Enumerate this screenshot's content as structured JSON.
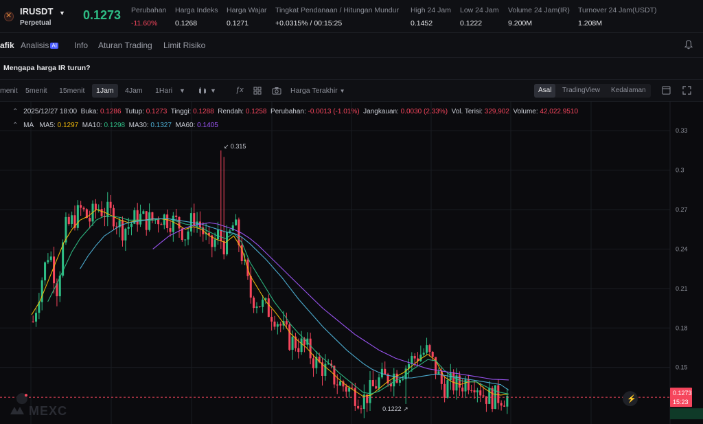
{
  "header": {
    "symbol": "IRUSDT",
    "contract_type": "Perpetual",
    "last_price": "0.1273",
    "stats": [
      {
        "label": "Perubahan",
        "value": "-11.60%",
        "negative": true
      },
      {
        "label": "Harga Indeks",
        "value": "0.1268"
      },
      {
        "label": "Harga Wajar",
        "value": "0.1271"
      },
      {
        "label": "Tingkat Pendanaan / Hitungan Mundur",
        "value": "+0.0315% / 00:15:25"
      },
      {
        "label": "High 24 Jam",
        "value": "0.1452"
      },
      {
        "label": "Low 24 Jam",
        "value": "0.1222"
      },
      {
        "label": "Volume 24 Jam(IR)",
        "value": "9.200M"
      },
      {
        "label": "Turnover 24 Jam(USDT)",
        "value": "1.208M"
      }
    ]
  },
  "tabs": {
    "chart": "afik",
    "analysis": "Analisis",
    "analysis_badge": "AI",
    "info": "Info",
    "rules": "Aturan Trading",
    "risk": "Limit Risiko"
  },
  "question": "Mengapa harga IR turun?",
  "toolbar": {
    "timeframes": [
      "menit",
      "5menit",
      "15menit",
      "1Jam",
      "4Jam",
      "1Hari"
    ],
    "selected_timeframe": "1Jam",
    "price_type": "Harga Terakhir",
    "views": [
      "Asal",
      "TradingView",
      "Kedalaman"
    ],
    "selected_view": "Asal"
  },
  "legend": {
    "ohlc": [
      {
        "label": "",
        "value": "2025/12/27 18:00"
      },
      {
        "label": "Buka:",
        "value": "0.1286"
      },
      {
        "label": "Tutup:",
        "value": "0.1273"
      },
      {
        "label": "Tinggi:",
        "value": "0.1288"
      },
      {
        "label": "Rendah:",
        "value": "0.1258"
      },
      {
        "label": "Perubahan:",
        "value": "-0.0013 (-1.01%)"
      },
      {
        "label": "Jangkauan:",
        "value": "0.0030 (2.33%)"
      },
      {
        "label": "Vol. Terisi:",
        "value": "329,902"
      },
      {
        "label": "Volume:",
        "value": "42,022.9510"
      }
    ],
    "ma_title": "MA",
    "ma": [
      {
        "label": "MA5:",
        "value": "0.1297",
        "color": "#f0b90b"
      },
      {
        "label": "MA10:",
        "value": "0.1298",
        "color": "#2ebd85"
      },
      {
        "label": "MA30:",
        "value": "0.1327",
        "color": "#4fb3d9"
      },
      {
        "label": "MA60:",
        "value": "0.1405",
        "color": "#a259ff"
      }
    ]
  },
  "chart_data": {
    "type": "candlestick",
    "y_ticks": [
      0.33,
      0.3,
      0.27,
      0.24,
      0.21,
      0.18,
      0.15
    ],
    "ylim": [
      0.107,
      0.352
    ],
    "high_marker": "0.315",
    "low_marker": "0.1222",
    "current_price": "0.1273",
    "countdown": "15:23",
    "close_path": [
      0.185,
      0.215,
      0.24,
      0.21,
      0.255,
      0.262,
      0.27,
      0.262,
      0.272,
      0.268,
      0.266,
      0.255,
      0.258,
      0.265,
      0.262,
      0.262,
      0.265,
      0.262,
      0.26,
      0.25,
      0.265,
      0.255,
      0.24,
      0.25,
      0.242,
      0.26,
      0.235,
      0.205,
      0.2,
      0.195,
      0.19,
      0.18,
      0.17,
      0.168,
      0.165,
      0.155,
      0.15,
      0.145,
      0.138,
      0.135,
      0.13,
      0.125,
      0.132,
      0.14,
      0.142,
      0.145,
      0.148,
      0.155,
      0.16,
      0.162,
      0.15,
      0.135,
      0.138,
      0.136,
      0.14,
      0.14,
      0.13,
      0.127,
      0.128,
      0.1273
    ],
    "ma_series": [
      {
        "name": "MA5",
        "color": "#f0b90b",
        "values": [
          0.19,
          0.2,
          0.215,
          0.23,
          0.245,
          0.255,
          0.262,
          0.265,
          0.27,
          0.268,
          0.265,
          0.262,
          0.26,
          0.262,
          0.262,
          0.263,
          0.263,
          0.262,
          0.259,
          0.255,
          0.257,
          0.255,
          0.25,
          0.247,
          0.245,
          0.25,
          0.24,
          0.22,
          0.21,
          0.2,
          0.193,
          0.185,
          0.176,
          0.17,
          0.165,
          0.158,
          0.152,
          0.147,
          0.141,
          0.136,
          0.132,
          0.128,
          0.129,
          0.134,
          0.139,
          0.143,
          0.146,
          0.151,
          0.156,
          0.16,
          0.155,
          0.143,
          0.139,
          0.137,
          0.139,
          0.139,
          0.134,
          0.13,
          0.129,
          0.1297
        ]
      },
      {
        "name": "MA10",
        "color": "#2ebd85",
        "values": [
          null,
          null,
          0.2,
          0.212,
          0.225,
          0.238,
          0.248,
          0.255,
          0.262,
          0.265,
          0.265,
          0.264,
          0.262,
          0.262,
          0.262,
          0.262,
          0.263,
          0.263,
          0.261,
          0.259,
          0.258,
          0.256,
          0.253,
          0.25,
          0.248,
          0.252,
          0.245,
          0.23,
          0.22,
          0.21,
          0.2,
          0.192,
          0.183,
          0.176,
          0.17,
          0.163,
          0.157,
          0.152,
          0.146,
          0.141,
          0.136,
          0.131,
          0.13,
          0.132,
          0.136,
          0.14,
          0.143,
          0.148,
          0.152,
          0.156,
          0.155,
          0.148,
          0.143,
          0.14,
          0.139,
          0.139,
          0.136,
          0.133,
          0.131,
          0.1298
        ]
      },
      {
        "name": "MA30",
        "color": "#4fb3d9",
        "values": [
          null,
          null,
          null,
          null,
          null,
          null,
          0.225,
          0.235,
          0.243,
          0.25,
          0.254,
          0.258,
          0.26,
          0.261,
          0.262,
          0.263,
          0.263,
          0.263,
          0.262,
          0.261,
          0.26,
          0.259,
          0.257,
          0.255,
          0.253,
          0.252,
          0.249,
          0.244,
          0.238,
          0.232,
          0.225,
          0.218,
          0.21,
          0.202,
          0.195,
          0.188,
          0.181,
          0.175,
          0.169,
          0.163,
          0.158,
          0.153,
          0.149,
          0.146,
          0.144,
          0.143,
          0.142,
          0.142,
          0.143,
          0.144,
          0.145,
          0.144,
          0.143,
          0.142,
          0.141,
          0.14,
          0.139,
          0.138,
          0.137,
          0.1327
        ]
      },
      {
        "name": "MA60",
        "color": "#a259ff",
        "values": [
          null,
          null,
          null,
          null,
          null,
          null,
          null,
          null,
          null,
          null,
          null,
          null,
          null,
          null,
          null,
          0.24,
          0.245,
          0.25,
          0.253,
          0.256,
          0.258,
          0.259,
          0.26,
          0.259,
          0.257,
          0.255,
          0.252,
          0.248,
          0.243,
          0.237,
          0.231,
          0.225,
          0.219,
          0.213,
          0.207,
          0.201,
          0.195,
          0.19,
          0.185,
          0.18,
          0.175,
          0.171,
          0.167,
          0.163,
          0.16,
          0.157,
          0.155,
          0.153,
          0.151,
          0.149,
          0.148,
          0.147,
          0.146,
          0.145,
          0.144,
          0.143,
          0.142,
          0.141,
          0.1408,
          0.1405
        ]
      }
    ]
  },
  "watermark": "MEXC"
}
